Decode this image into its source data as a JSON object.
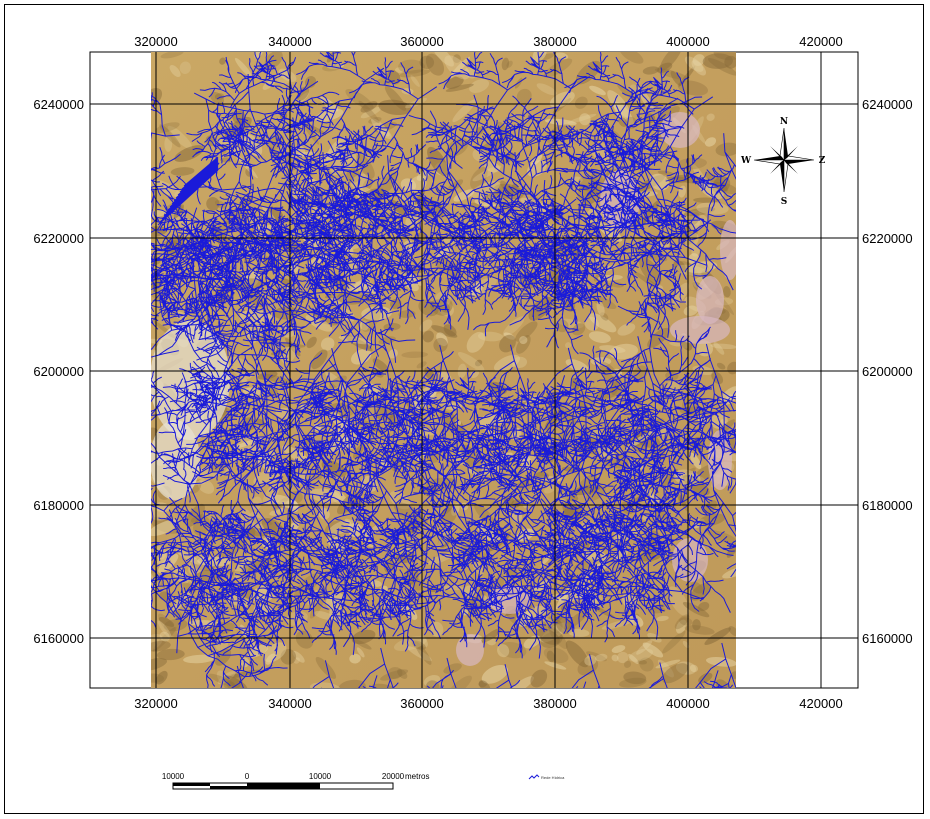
{
  "map": {
    "x_ticks": [
      "320000",
      "340000",
      "360000",
      "380000",
      "400000",
      "420000"
    ],
    "y_ticks": [
      "6240000",
      "6220000",
      "6200000",
      "6180000",
      "6160000"
    ],
    "compass": {
      "n": "N",
      "s": "S",
      "w": "W",
      "e": "Z"
    },
    "scale_bar": {
      "labels": [
        "10000",
        "0",
        "10000",
        "20000"
      ],
      "unit": "metros"
    },
    "legend_text": "Rede Hídrica",
    "colors": {
      "river": "#1a1ad9",
      "terrain": "#c8a866",
      "terrain_dark": "#8a6c3a",
      "terrain_light": "#e6d3a2",
      "high_ground": "#d9b8c2",
      "grid": "#000000"
    }
  }
}
